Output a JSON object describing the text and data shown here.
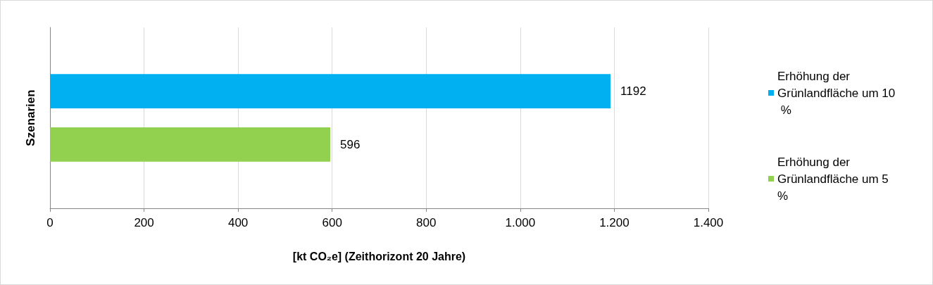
{
  "chart_data": {
    "type": "bar",
    "orientation": "horizontal",
    "xlabel": "[kt CO₂e] (Zeithorizont 20 Jahre)",
    "ylabel": "Szenarien",
    "categories": [
      null
    ],
    "series": [
      {
        "name": "Erhöhung der Grünlandfläche um 10 %",
        "color": "#00b0f0",
        "values": [
          1192
        ]
      },
      {
        "name": "Erhöhung der Grünlandfläche um 5 %",
        "color": "#92d050",
        "values": [
          596
        ]
      }
    ],
    "xlim": [
      0,
      1400
    ],
    "xticks": [
      0,
      200,
      400,
      600,
      800,
      {
        "value": 1000,
        "label": "1.000"
      },
      {
        "value": 1200,
        "label": "1.200"
      },
      {
        "value": 1400,
        "label": "1.400"
      }
    ],
    "grid": "x",
    "legend": "right",
    "data_labels": true
  }
}
